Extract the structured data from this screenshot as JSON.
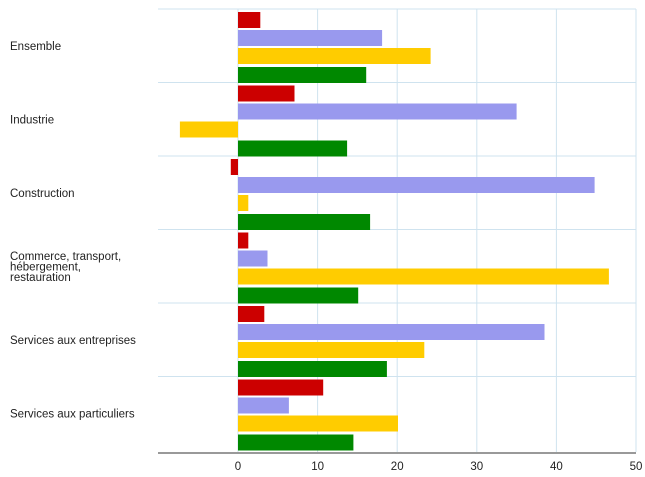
{
  "chart_data": {
    "type": "bar",
    "orientation": "horizontal",
    "categories": [
      [
        "Ensemble"
      ],
      [
        "Industrie"
      ],
      [
        "Construction"
      ],
      [
        "Commerce, transport,",
        "hébergement,",
        "restauration"
      ],
      [
        "Services aux entreprises"
      ],
      [
        "Services aux particuliers"
      ]
    ],
    "series": [
      {
        "color": "#cc0000",
        "values": [
          2.8,
          7.1,
          -0.9,
          1.3,
          3.3,
          10.7
        ]
      },
      {
        "color": "#9999ee",
        "values": [
          18.1,
          35.0,
          44.8,
          3.7,
          38.5,
          6.4
        ]
      },
      {
        "color": "#ffcc00",
        "values": [
          24.2,
          -7.3,
          1.3,
          46.6,
          23.4,
          20.1
        ]
      },
      {
        "color": "#008800",
        "values": [
          16.1,
          13.7,
          16.6,
          15.1,
          18.7,
          14.5
        ]
      }
    ],
    "xlim": [
      -10,
      50
    ],
    "xticks": [
      0,
      10,
      20,
      30,
      40,
      50
    ],
    "grid": true,
    "legend": "none"
  }
}
